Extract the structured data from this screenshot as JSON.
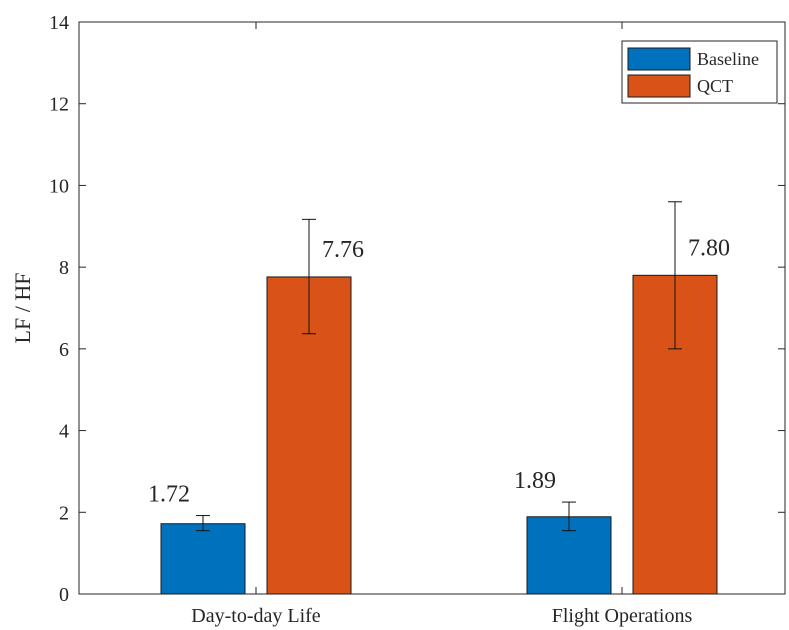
{
  "chart_data": {
    "type": "bar",
    "title": "",
    "xlabel": "",
    "ylabel": "LF / HF",
    "ylim": [
      0,
      14
    ],
    "yticks": [
      0,
      2,
      4,
      6,
      8,
      10,
      12,
      14
    ],
    "categories": [
      "Day-to-day Life",
      "Flight Operations"
    ],
    "series": [
      {
        "name": "Baseline",
        "color": "#0072BD",
        "values": [
          1.72,
          1.89
        ],
        "labels": [
          "1.72",
          "1.89"
        ],
        "error_low": [
          1.55,
          1.55
        ],
        "error_high": [
          1.92,
          2.25
        ]
      },
      {
        "name": "QCT",
        "color": "#D95319",
        "values": [
          7.76,
          7.8
        ],
        "labels": [
          "7.76",
          "7.80"
        ],
        "error_low": [
          6.37,
          6.0
        ],
        "error_high": [
          9.17,
          9.6
        ]
      }
    ],
    "legend_position": "top-right",
    "grid": false
  }
}
